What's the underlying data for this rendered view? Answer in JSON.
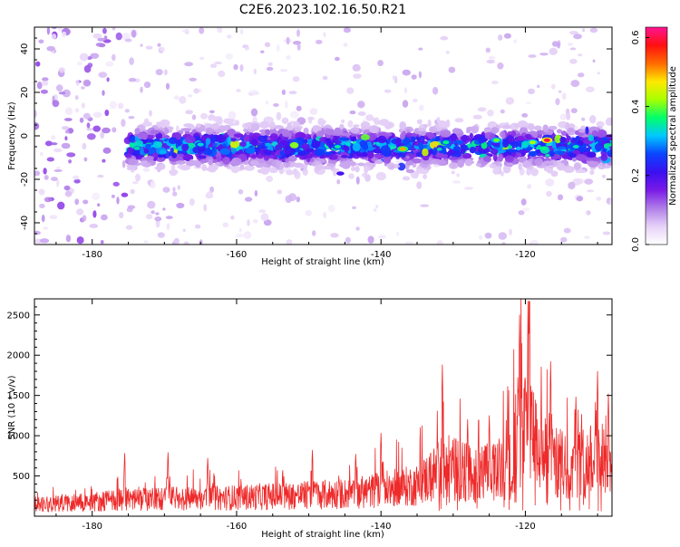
{
  "title": "C2E6.2023.102.16.50.R21",
  "colorbar": {
    "label": "Normalized spectral amplitude",
    "ticks": [
      "0.0",
      "0.2",
      "0.4",
      "0.6"
    ],
    "range": [
      0,
      0.63
    ],
    "colormap": [
      "#ffffff",
      "#e6d2f7",
      "#b07ee8",
      "#7a1ae6",
      "#3a10f0",
      "#0a44ff",
      "#00c8ff",
      "#00ff6a",
      "#a8ff00",
      "#ffe800",
      "#ff6a00",
      "#ff1010",
      "#ff1493"
    ]
  },
  "chart_data": [
    {
      "type": "heatmap",
      "xlabel": "Height of straight line (km)",
      "ylabel": "Frequency (Hz)",
      "xlim": [
        -188,
        -108
      ],
      "ylim": [
        -50,
        50
      ],
      "xticks": [
        "-180",
        "-160",
        "-140",
        "-120"
      ],
      "yticks": [
        "-40",
        "-20",
        "0",
        "20",
        "40"
      ],
      "band_center_hz": -5,
      "band_halfwidth_hz": 7,
      "peak_value": 0.6,
      "peak_location": [
        -117,
        -2
      ]
    },
    {
      "type": "line",
      "xlabel": "Height of straight line (km)",
      "ylabel": "SNR (10 * v/v)",
      "xlim": [
        -188,
        -108
      ],
      "ylim": [
        0,
        2700
      ],
      "xticks": [
        "-180",
        "-160",
        "-140",
        "-120"
      ],
      "yticks": [
        "500",
        "1000",
        "1500",
        "2000",
        "2500"
      ],
      "color": "#ee2a2a",
      "envelope_x": [
        -188,
        -180,
        -175,
        -170,
        -165,
        -160,
        -155,
        -150,
        -145,
        -140,
        -135,
        -131,
        -128,
        -125,
        -122,
        -121,
        -119.5,
        -117,
        -114,
        -111,
        -108
      ],
      "envelope_y": [
        200,
        230,
        280,
        280,
        280,
        300,
        320,
        340,
        360,
        420,
        500,
        800,
        700,
        700,
        800,
        1400,
        1300,
        900,
        800,
        900,
        1000
      ],
      "peaks": [
        [
          -175.5,
          780
        ],
        [
          -169.5,
          790
        ],
        [
          -164,
          720
        ],
        [
          -149.5,
          820
        ],
        [
          -143.5,
          770
        ],
        [
          -140,
          1030
        ],
        [
          -131.5,
          1880
        ],
        [
          -128,
          1200
        ],
        [
          -125,
          1250
        ],
        [
          -120.8,
          2500
        ],
        [
          -119.5,
          2670
        ],
        [
          -116.5,
          1920
        ],
        [
          -113,
          1480
        ],
        [
          -110,
          1800
        ],
        [
          -108.5,
          1520
        ]
      ]
    }
  ]
}
